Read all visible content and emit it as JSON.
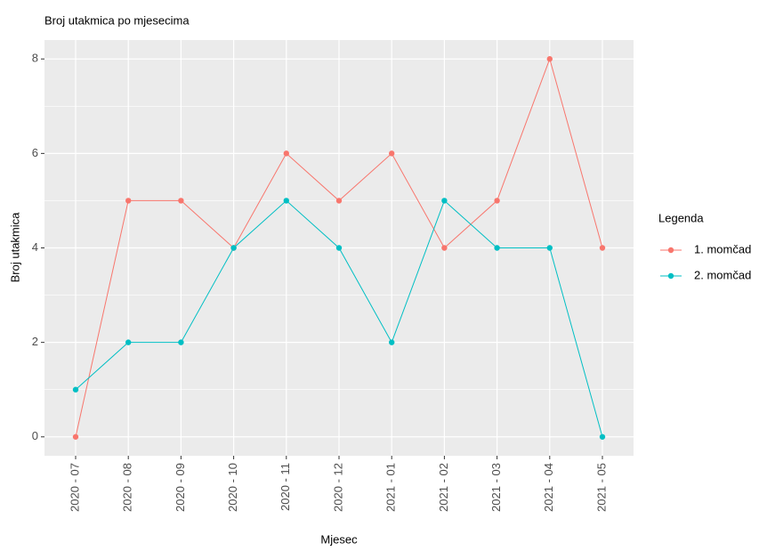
{
  "chart_data": {
    "type": "line",
    "title": "Broj utakmica po mjesecima",
    "x_label": "Mjesec",
    "y_label": "Broj utakmica",
    "categories": [
      "2020 - 07",
      "2020 - 08",
      "2020 - 09",
      "2020 - 10",
      "2020 - 11",
      "2020 - 12",
      "2021 - 01",
      "2021 - 02",
      "2021 - 03",
      "2021 - 04",
      "2021 - 05"
    ],
    "series": [
      {
        "name": "1. momčad",
        "color": "#F8766D",
        "values": [
          0,
          5,
          5,
          4,
          6,
          5,
          6,
          4,
          5,
          8,
          4
        ]
      },
      {
        "name": "2. momčad",
        "color": "#00BFC4",
        "values": [
          1,
          2,
          2,
          4,
          5,
          4,
          2,
          5,
          4,
          4,
          0
        ]
      }
    ],
    "legend_title": "Legenda",
    "ylim": [
      -0.4,
      8.4
    ],
    "yticks": [
      0,
      2,
      4,
      6,
      8
    ],
    "grid": true
  }
}
